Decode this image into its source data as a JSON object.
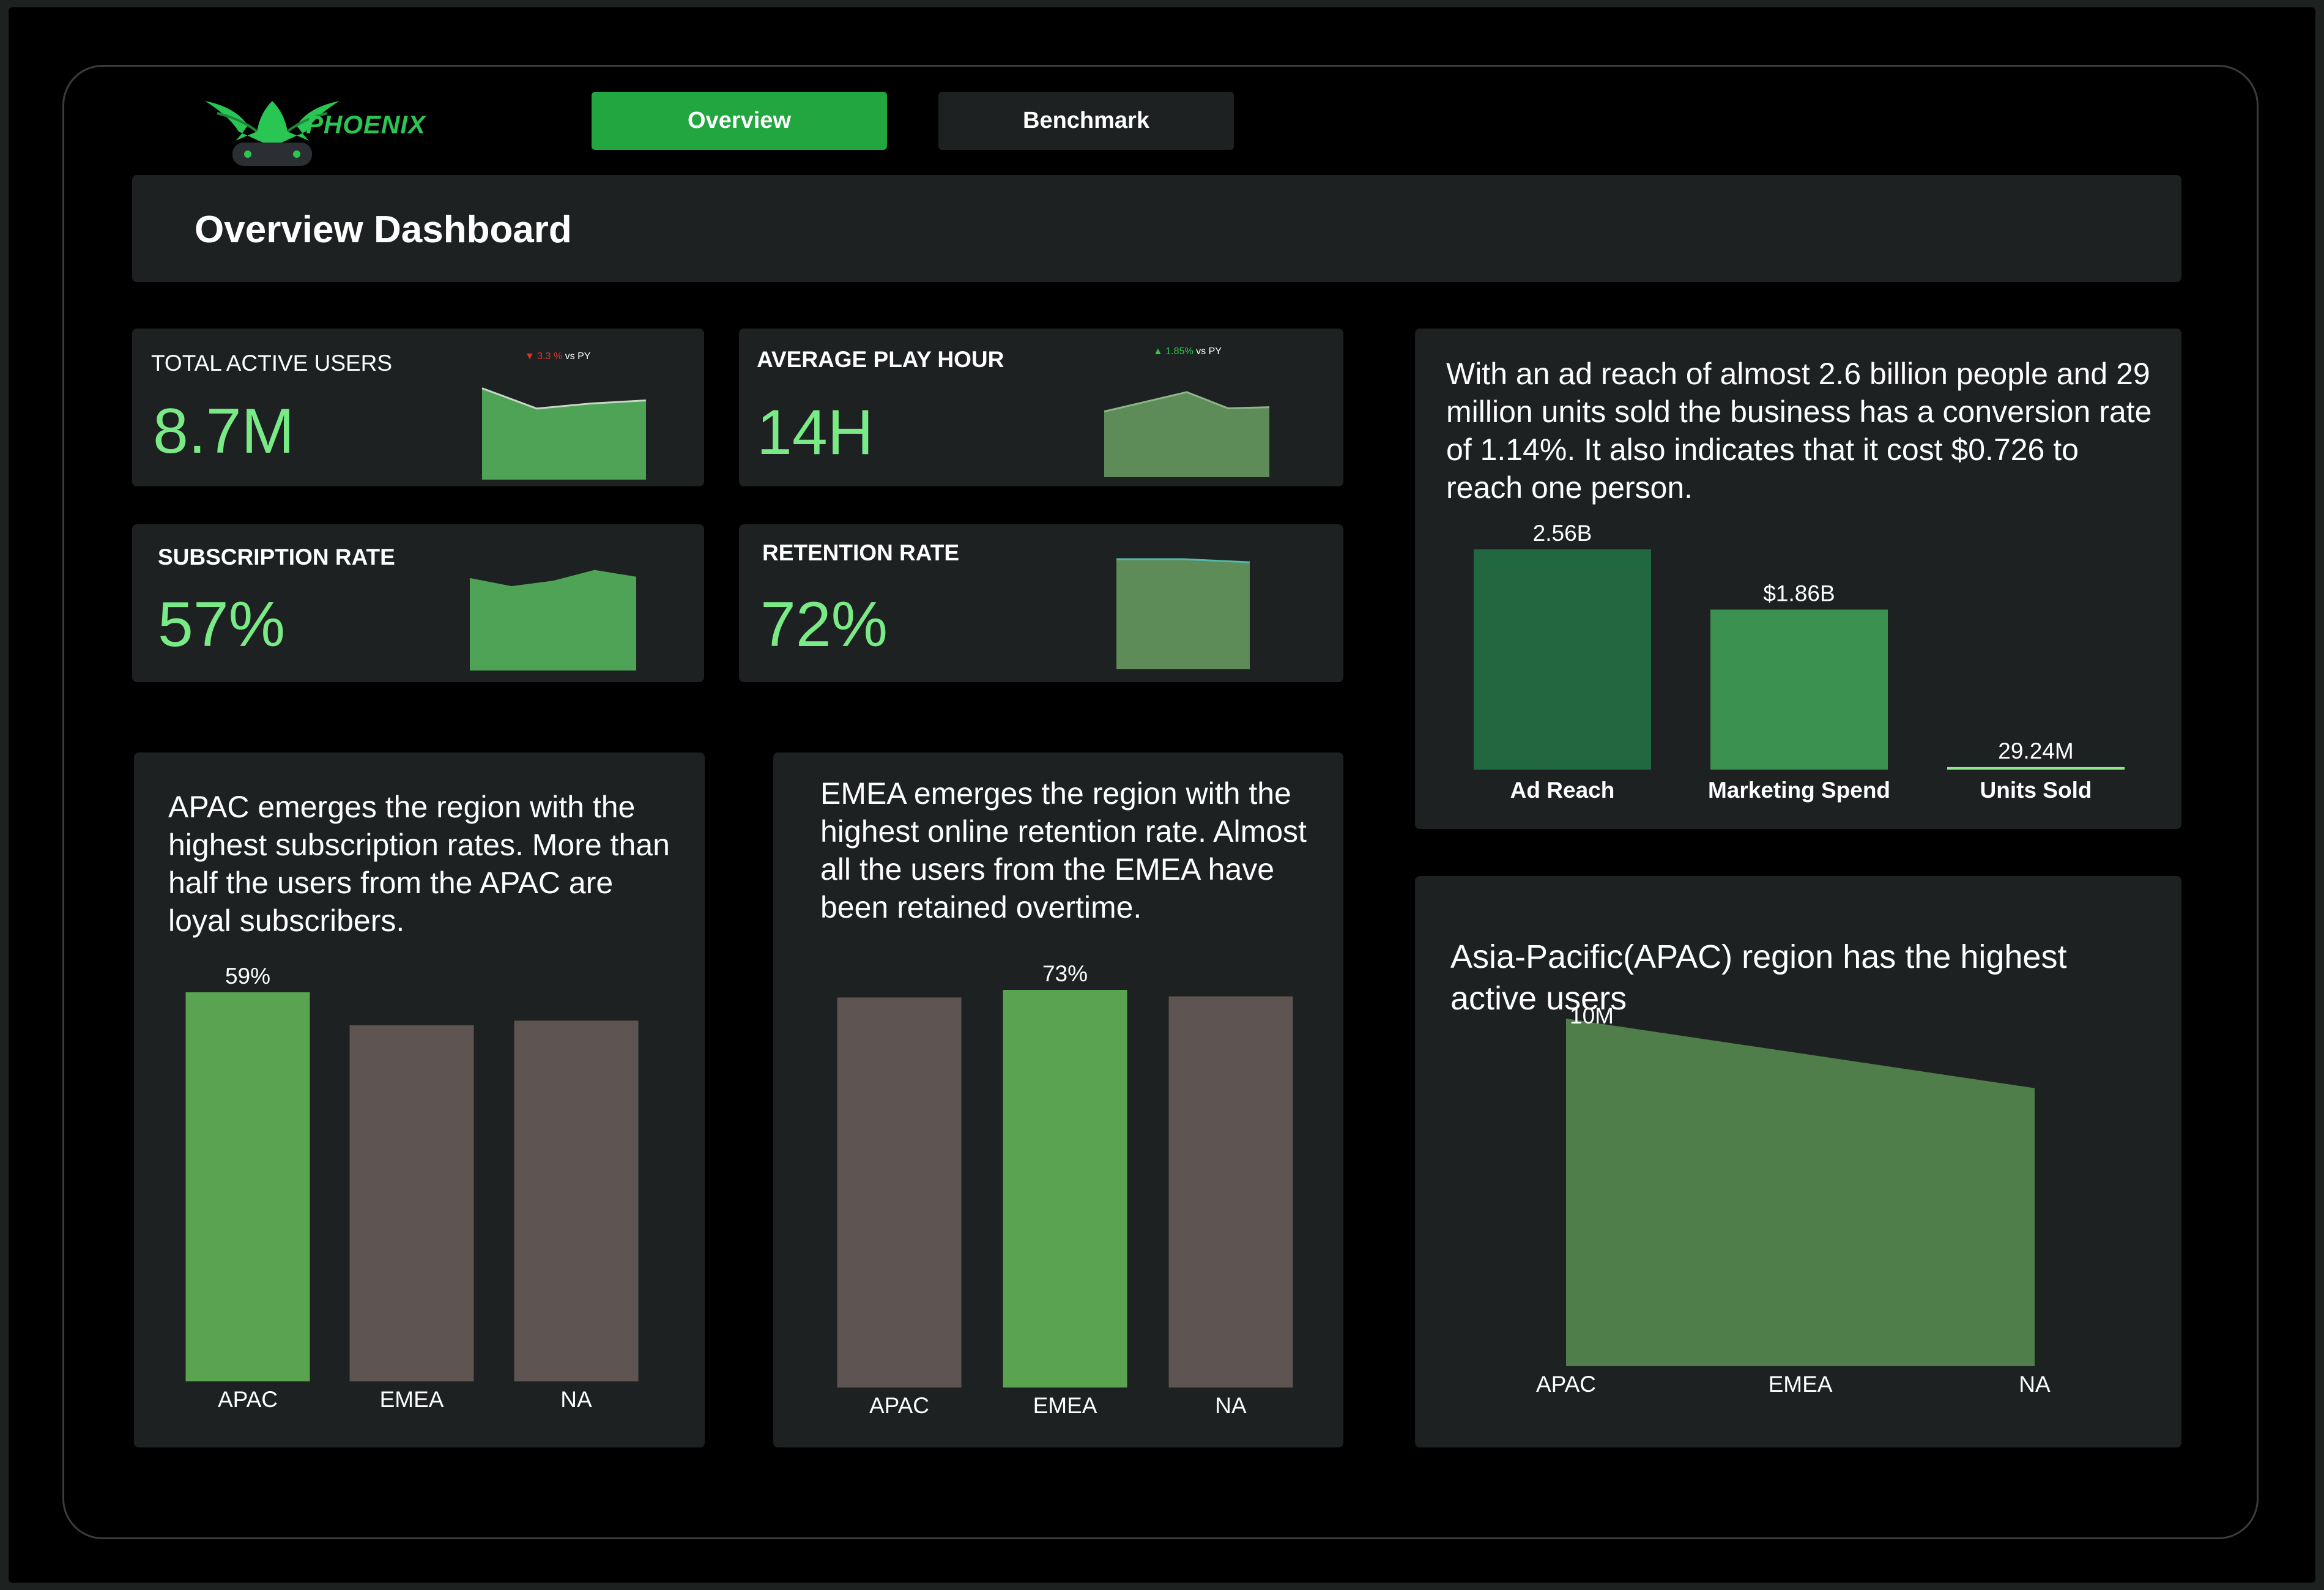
{
  "brand": {
    "name": "PHOENIX"
  },
  "nav": {
    "tabs": [
      {
        "label": "Overview",
        "active": true
      },
      {
        "label": "Benchmark",
        "active": false
      }
    ]
  },
  "header": {
    "title": "Overview Dashboard"
  },
  "kpis": {
    "total_active_users": {
      "label": "TOTAL ACTIVE USERS",
      "value": "8.7M",
      "delta": "3.3 %",
      "delta_suffix": "vs PY",
      "direction": "down"
    },
    "average_play_hour": {
      "label": "AVERAGE PLAY HOUR",
      "value": "14H",
      "delta": "1.85%",
      "delta_suffix": "vs PY",
      "direction": "up"
    },
    "subscription_rate": {
      "label": "SUBSCRIPTION RATE",
      "value": "57%"
    },
    "retention_rate": {
      "label": "RETENTION RATE",
      "value": "72%"
    }
  },
  "insights": {
    "ad_reach": "With an ad reach of almost 2.6 billion people and 29 million units sold the business has a conversion rate of 1.14%. It also indicates that it cost $0.726 to reach one person.",
    "subscription": "APAC emerges the region with the highest subscription rates. More than half the users from the APAC are loyal subscribers.",
    "retention": "EMEA emerges the region with the highest online retention rate. Almost all the users from the EMEA have been retained overtime.",
    "active_users_title": "Asia-Pacific(APAC) region has the highest active users"
  },
  "colors": {
    "accent": "#22a63f",
    "kpi_value": "#7aea87",
    "panel": "#1d2121",
    "bar_highlight": "#5aa350",
    "bar_muted": "#5e5452",
    "ad_reach_bar": "#216840",
    "spend_bar": "#3b9150",
    "area_fill": "#4f7e4b"
  },
  "chart_data": [
    {
      "type": "area",
      "chart": "total-active-users-sparkline",
      "x": [
        1,
        2,
        3,
        4
      ],
      "values": [
        4.5,
        3.5,
        3.75,
        3.9
      ],
      "ylim": [
        0,
        5
      ]
    },
    {
      "type": "area",
      "chart": "average-play-hour-sparkline",
      "x": [
        1,
        2,
        3,
        4,
        5
      ],
      "values": [
        3.05,
        3.5,
        3.95,
        3.2,
        3.25
      ],
      "ylim": [
        0,
        5
      ]
    },
    {
      "type": "area",
      "chart": "subscription-rate-sparkline",
      "x": [
        1,
        2,
        3,
        4,
        5
      ],
      "values": [
        3.4,
        3.1,
        3.3,
        3.7,
        3.45
      ],
      "ylim": [
        0,
        4
      ]
    },
    {
      "type": "area",
      "chart": "retention-rate-sparkline",
      "x": [
        1,
        2,
        3
      ],
      "values": [
        3.5,
        3.5,
        3.4
      ],
      "ylim": [
        0,
        3.5
      ]
    },
    {
      "type": "bar",
      "chart": "ad-reach-vs-spend",
      "categories": [
        "Ad Reach",
        "Marketing Spend",
        "Units Sold"
      ],
      "values": [
        2.56,
        1.86,
        0.02924
      ],
      "value_labels": [
        "2.56B",
        "$1.86B",
        "29.24M"
      ],
      "ylim": [
        0,
        2.56
      ]
    },
    {
      "type": "bar",
      "chart": "subscription-rate-by-region",
      "categories": [
        "APAC",
        "EMEA",
        "NA"
      ],
      "values": [
        59,
        54,
        54.7
      ],
      "value_labels": [
        "59%",
        "",
        ""
      ],
      "ylim": [
        0,
        59
      ]
    },
    {
      "type": "bar",
      "chart": "retention-rate-by-region",
      "categories": [
        "APAC",
        "EMEA",
        "NA"
      ],
      "values": [
        71.6,
        73,
        71.8
      ],
      "value_labels": [
        "",
        "73%",
        ""
      ],
      "ylim": [
        0,
        73
      ]
    },
    {
      "type": "area",
      "chart": "active-users-by-region",
      "categories": [
        "APAC",
        "EMEA",
        "NA"
      ],
      "values": [
        10,
        9.0,
        8.0
      ],
      "value_labels": [
        "10M",
        "",
        ""
      ],
      "ylim": [
        0,
        10
      ]
    }
  ]
}
